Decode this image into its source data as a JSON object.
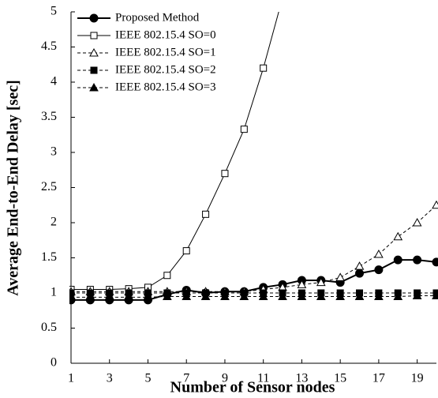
{
  "chart_data": {
    "type": "line",
    "xlabel": "Number of Sensor nodes",
    "ylabel": "Average End-to-End Delay [sec]",
    "x": [
      1,
      2,
      3,
      4,
      5,
      6,
      7,
      8,
      9,
      10,
      11,
      12,
      13,
      14,
      15,
      16,
      17,
      18,
      19,
      20
    ],
    "xlim": [
      1,
      20
    ],
    "xticks": [
      1,
      3,
      5,
      7,
      9,
      11,
      13,
      15,
      17,
      19
    ],
    "ylim": [
      0,
      5
    ],
    "yticks": [
      0,
      0.5,
      1,
      1.5,
      2,
      2.5,
      3,
      3.5,
      4,
      4.5,
      5
    ],
    "legend": "upper left",
    "series": [
      {
        "name": "Proposed Method",
        "color": "#000000",
        "marker": "circle",
        "filled": true,
        "dash": "solid",
        "values": [
          0.9,
          0.9,
          0.9,
          0.9,
          0.9,
          0.98,
          1.04,
          1.0,
          1.02,
          1.02,
          1.08,
          1.12,
          1.18,
          1.18,
          1.15,
          1.28,
          1.33,
          1.47,
          1.47,
          1.44
        ]
      },
      {
        "name": "IEEE 802.15.4 SO=0",
        "color": "#000000",
        "marker": "square",
        "filled": false,
        "dash": "solid",
        "values": [
          1.05,
          1.05,
          1.05,
          1.06,
          1.08,
          1.25,
          1.6,
          2.12,
          2.7,
          3.33,
          4.2,
          5.2,
          null,
          null,
          null,
          null,
          null,
          null,
          null,
          null
        ]
      },
      {
        "name": "IEEE 802.15.4 SO=1",
        "color": "#000000",
        "marker": "triangle",
        "filled": false,
        "dash": "dashed",
        "values": [
          1.02,
          1.02,
          1.02,
          1.02,
          1.02,
          1.02,
          1.02,
          1.02,
          1.02,
          1.02,
          1.05,
          1.08,
          1.12,
          1.15,
          1.22,
          1.38,
          1.55,
          1.8,
          2.0,
          2.25
        ]
      },
      {
        "name": "IEEE 802.15.4 SO=2",
        "color": "#000000",
        "marker": "square",
        "filled": true,
        "dash": "dashed",
        "values": [
          1.0,
          1.0,
          1.0,
          1.0,
          1.0,
          1.0,
          1.0,
          1.0,
          1.0,
          1.0,
          1.0,
          1.0,
          1.0,
          1.0,
          1.0,
          1.0,
          1.0,
          1.0,
          1.0,
          1.0
        ]
      },
      {
        "name": "IEEE 802.15.4 SO=3",
        "color": "#000000",
        "marker": "triangle",
        "filled": true,
        "dash": "dashed",
        "values": [
          0.94,
          0.94,
          0.94,
          0.94,
          0.94,
          0.95,
          0.95,
          0.95,
          0.95,
          0.95,
          0.95,
          0.95,
          0.95,
          0.95,
          0.95,
          0.95,
          0.95,
          0.95,
          0.96,
          0.96
        ]
      }
    ]
  }
}
